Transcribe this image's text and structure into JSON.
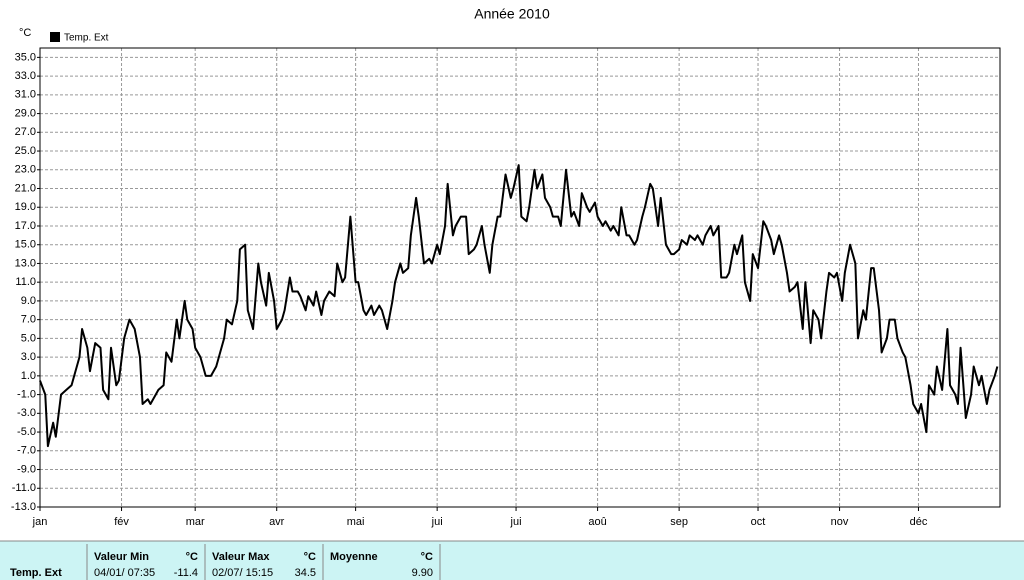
{
  "chart_data": {
    "type": "line",
    "title": "Année 2010",
    "y_unit": "°C",
    "xlim": [
      0,
      365
    ],
    "xticks": [
      {
        "value": 0,
        "label": "jan"
      },
      {
        "value": 31,
        "label": "fév"
      },
      {
        "value": 59,
        "label": "mar"
      },
      {
        "value": 90,
        "label": "avr"
      },
      {
        "value": 120,
        "label": "mai"
      },
      {
        "value": 151,
        "label": "jui"
      },
      {
        "value": 181,
        "label": "jui"
      },
      {
        "value": 212,
        "label": "aoû"
      },
      {
        "value": 243,
        "label": "sep"
      },
      {
        "value": 273,
        "label": "oct"
      },
      {
        "value": 304,
        "label": "nov"
      },
      {
        "value": 334,
        "label": "déc"
      }
    ],
    "ylim": [
      -13,
      36
    ],
    "yticks": [
      {
        "value": -13,
        "label": "-13.0"
      },
      {
        "value": -11,
        "label": "-11.0"
      },
      {
        "value": -9,
        "label": "-9.0"
      },
      {
        "value": -7,
        "label": "-7.0"
      },
      {
        "value": -5,
        "label": "-5.0"
      },
      {
        "value": -3,
        "label": "-3.0"
      },
      {
        "value": -1,
        "label": "-1.0"
      },
      {
        "value": 1,
        "label": "1.0"
      },
      {
        "value": 3,
        "label": "3.0"
      },
      {
        "value": 5,
        "label": "5.0"
      },
      {
        "value": 7,
        "label": "7.0"
      },
      {
        "value": 9,
        "label": "9.0"
      },
      {
        "value": 11,
        "label": "11.0"
      },
      {
        "value": 13,
        "label": "13.0"
      },
      {
        "value": 15,
        "label": "15.0"
      },
      {
        "value": 17,
        "label": "17.0"
      },
      {
        "value": 19,
        "label": "19.0"
      },
      {
        "value": 21,
        "label": "21.0"
      },
      {
        "value": 23,
        "label": "23.0"
      },
      {
        "value": 25,
        "label": "25.0"
      },
      {
        "value": 27,
        "label": "27.0"
      },
      {
        "value": 29,
        "label": "29.0"
      },
      {
        "value": 31,
        "label": "31.0"
      },
      {
        "value": 33,
        "label": "33.0"
      },
      {
        "value": 35,
        "label": "35.0"
      }
    ],
    "grid": true,
    "legend": "top-left",
    "x": [
      0,
      2,
      3,
      5,
      6,
      8,
      10,
      12,
      14,
      15,
      16,
      18,
      19,
      21,
      23,
      24,
      26,
      27,
      29,
      30,
      32,
      34,
      36,
      38,
      39,
      41,
      42,
      44,
      45,
      47,
      48,
      50,
      52,
      53,
      55,
      56,
      58,
      59,
      61,
      63,
      65,
      67,
      68,
      70,
      71,
      73,
      75,
      76,
      78,
      79,
      81,
      83,
      84,
      86,
      87,
      89,
      90,
      92,
      93,
      95,
      96,
      98,
      99,
      101,
      102,
      104,
      105,
      107,
      108,
      110,
      112,
      113,
      115,
      116,
      118,
      120,
      121,
      123,
      124,
      126,
      127,
      129,
      130,
      132,
      134,
      135,
      137,
      138,
      140,
      141,
      143,
      144,
      146,
      148,
      149,
      151,
      152,
      154,
      155,
      157,
      158,
      160,
      162,
      163,
      165,
      166,
      168,
      169,
      171,
      172,
      174,
      175,
      177,
      179,
      180,
      182,
      183,
      185,
      186,
      188,
      189,
      191,
      192,
      194,
      195,
      197,
      198,
      200,
      202,
      203,
      205,
      206,
      208,
      209,
      211,
      212,
      214,
      215,
      217,
      218,
      220,
      221,
      223,
      224,
      226,
      227,
      229,
      230,
      232,
      233,
      235,
      236,
      238,
      240,
      241,
      243,
      244,
      246,
      247,
      249,
      250,
      252,
      253,
      255,
      256,
      258,
      259,
      261,
      262,
      264,
      265,
      267,
      268,
      270,
      271,
      273,
      275,
      276,
      278,
      279,
      281,
      282,
      284,
      285,
      287,
      288,
      290,
      291,
      293,
      294,
      296,
      297,
      299,
      300,
      302,
      303,
      305,
      306,
      308,
      310,
      311,
      313,
      314,
      316,
      317,
      319,
      320,
      322,
      323,
      325,
      326,
      328,
      329,
      331,
      332,
      334,
      335,
      337,
      338,
      340,
      341,
      343,
      345,
      346,
      348,
      349,
      350,
      352,
      354,
      355,
      357,
      358,
      360,
      361,
      363,
      364
    ],
    "series": [
      {
        "name": "Temp. Ext",
        "color": "#000000",
        "values": [
          0.5,
          -1,
          -6.5,
          -4,
          -5.5,
          -1,
          -0.5,
          0,
          2,
          3,
          6,
          4,
          1.5,
          4.5,
          4,
          -0.5,
          -1.5,
          4,
          0,
          0.5,
          5,
          7,
          6,
          3,
          -2,
          -1.5,
          -2,
          -1,
          -0.5,
          0,
          3.5,
          2.5,
          7,
          5,
          9,
          7,
          6,
          4,
          3,
          1,
          1,
          2,
          3,
          5,
          7,
          6.5,
          9,
          14.5,
          15,
          8,
          6,
          13,
          11,
          8.5,
          12,
          9,
          6,
          7,
          8,
          11.5,
          10,
          10,
          9.5,
          8,
          9.5,
          8.5,
          10,
          7.5,
          9,
          10,
          9.5,
          13,
          11,
          11.5,
          18,
          11,
          11,
          8,
          7.5,
          8.5,
          7.5,
          8.5,
          8,
          6,
          9,
          11,
          13,
          12,
          12.5,
          16,
          20,
          18,
          13,
          13.5,
          13,
          15,
          14,
          17,
          21.5,
          16,
          17,
          18,
          18,
          14,
          14.5,
          15,
          17,
          15,
          12,
          15,
          18,
          18,
          22.5,
          20,
          21,
          23.5,
          18,
          17.5,
          19,
          23,
          21,
          22.5,
          20,
          19,
          18,
          18,
          17,
          23,
          18,
          18.5,
          17,
          20.5,
          19,
          18.5,
          19.5,
          18,
          17,
          17.5,
          16.5,
          17,
          16,
          19,
          16,
          16,
          15,
          15.5,
          18,
          19,
          21.5,
          21,
          17,
          20,
          15,
          14,
          14,
          14.5,
          15.5,
          15,
          16,
          15.5,
          16,
          15,
          16,
          17,
          16,
          17,
          11.5,
          11.5,
          12,
          15,
          14,
          16,
          11,
          9,
          14,
          12.5,
          17.5,
          17,
          15.5,
          14,
          16,
          15,
          12,
          10,
          10.5,
          11,
          6,
          11,
          4.5,
          8,
          7,
          5,
          10,
          12,
          11.5,
          12,
          9,
          12,
          15,
          13,
          5,
          8,
          7,
          12.5,
          12.5,
          8,
          3.5,
          5,
          7,
          7,
          5,
          3.5,
          3,
          0,
          -2,
          -3,
          -2,
          -5,
          0,
          -1,
          2,
          -0.5,
          6,
          0,
          -1,
          -2,
          4,
          -3.5,
          -1,
          2,
          0,
          1,
          -2,
          -0.5,
          1,
          2
        ]
      }
    ]
  },
  "stats": {
    "row_label": "Temp. Ext",
    "columns": [
      {
        "title": "Valeur Min",
        "unit": "°C",
        "time": "04/01/ 07:35",
        "value": "-11.4"
      },
      {
        "title": "Valeur Max",
        "unit": "°C",
        "time": "02/07/ 15:15",
        "value": "34.5"
      },
      {
        "title": "Moyenne",
        "unit": "°C",
        "time": null,
        "value": "9.90"
      }
    ]
  }
}
